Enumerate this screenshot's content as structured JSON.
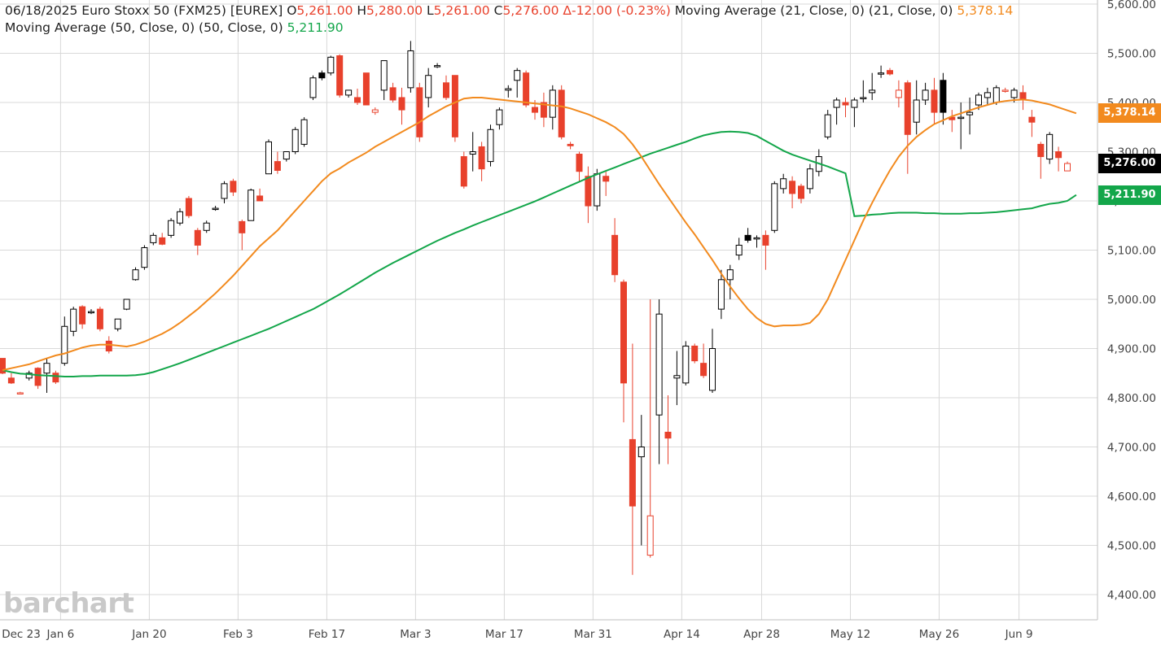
{
  "legend": {
    "line1": {
      "date": "06/18/2025",
      "symbol": "Euro Stoxx 50 (FXM25) [EUREX]",
      "o_label": "O",
      "o": "5,261.00",
      "h_label": "H",
      "h": "5,280.00",
      "l_label": "L",
      "l": "5,261.00",
      "c_label": "C",
      "c": "5,276.00",
      "change": "Δ-12.00 (-0.23%)",
      "ma21_label": "Moving Average (21, Close, 0)  (21, Close, 0)",
      "ma21_value": "5,378.14"
    },
    "line2": {
      "ma50_label": "Moving Average (50, Close, 0)  (50, Close, 0)",
      "ma50_value": "5,211.90"
    }
  },
  "watermark": "barchart",
  "price_tags": {
    "ma21": "5,378.14",
    "last": "5,276.00",
    "ma50": "5,211.90"
  },
  "colors": {
    "up": "#000000",
    "down": "#e8412c",
    "ma21": "#f28a1e",
    "ma50": "#13a64a",
    "grid": "#d9d9d9"
  },
  "chart_data": {
    "type": "candlestick",
    "x_ticks": [
      "Dec 23",
      "Jan 6",
      "Jan 20",
      "Feb 3",
      "Feb 17",
      "Mar 3",
      "Mar 17",
      "Mar 31",
      "Apr 14",
      "Apr 28",
      "May 12",
      "May 26",
      "Jun 9"
    ],
    "y_ticks": [
      "5,600.00",
      "5,500.00",
      "5,400.00",
      "5,300.00",
      "5,200.00",
      "5,100.00",
      "5,000.00",
      "4,900.00",
      "4,800.00",
      "4,700.00",
      "4,600.00",
      "4,500.00",
      "4,400.00"
    ],
    "ylim": [
      4380,
      5610
    ],
    "candles": [
      {
        "o": 4880,
        "h": 4880,
        "l": 4848,
        "c": 4850
      },
      {
        "o": 4840,
        "h": 4850,
        "l": 4828,
        "c": 4830
      },
      {
        "o": 4810,
        "h": 4812,
        "l": 4808,
        "c": 4810
      },
      {
        "o": 4840,
        "h": 4855,
        "l": 4835,
        "c": 4850
      },
      {
        "o": 4860,
        "h": 4862,
        "l": 4818,
        "c": 4825
      },
      {
        "o": 4850,
        "h": 4880,
        "l": 4810,
        "c": 4870
      },
      {
        "o": 4850,
        "h": 4855,
        "l": 4828,
        "c": 4832
      },
      {
        "o": 4870,
        "h": 4965,
        "l": 4865,
        "c": 4945
      },
      {
        "o": 4935,
        "h": 4985,
        "l": 4925,
        "c": 4980
      },
      {
        "o": 4985,
        "h": 4988,
        "l": 4940,
        "c": 4950
      },
      {
        "o": 4975,
        "h": 4980,
        "l": 4970,
        "c": 4975
      },
      {
        "o": 4980,
        "h": 4985,
        "l": 4935,
        "c": 4940
      },
      {
        "o": 4915,
        "h": 4925,
        "l": 4890,
        "c": 4895
      },
      {
        "o": 4940,
        "h": 4960,
        "l": 4935,
        "c": 4960
      },
      {
        "o": 4980,
        "h": 5000,
        "l": 4978,
        "c": 5000
      },
      {
        "o": 5040,
        "h": 5065,
        "l": 5038,
        "c": 5060
      },
      {
        "o": 5065,
        "h": 5110,
        "l": 5060,
        "c": 5105
      },
      {
        "o": 5115,
        "h": 5135,
        "l": 5110,
        "c": 5130
      },
      {
        "o": 5125,
        "h": 5135,
        "l": 5110,
        "c": 5112
      },
      {
        "o": 5130,
        "h": 5165,
        "l": 5125,
        "c": 5160
      },
      {
        "o": 5155,
        "h": 5185,
        "l": 5150,
        "c": 5178
      },
      {
        "o": 5205,
        "h": 5210,
        "l": 5165,
        "c": 5170
      },
      {
        "o": 5140,
        "h": 5145,
        "l": 5090,
        "c": 5110
      },
      {
        "o": 5140,
        "h": 5160,
        "l": 5135,
        "c": 5155
      },
      {
        "o": 5185,
        "h": 5190,
        "l": 5180,
        "c": 5185
      },
      {
        "o": 5205,
        "h": 5240,
        "l": 5195,
        "c": 5235
      },
      {
        "o": 5240,
        "h": 5245,
        "l": 5210,
        "c": 5218
      },
      {
        "o": 5158,
        "h": 5162,
        "l": 5100,
        "c": 5135
      },
      {
        "o": 5160,
        "h": 5225,
        "l": 5160,
        "c": 5222
      },
      {
        "o": 5210,
        "h": 5225,
        "l": 5200,
        "c": 5200
      },
      {
        "o": 5255,
        "h": 5325,
        "l": 5255,
        "c": 5320
      },
      {
        "o": 5280,
        "h": 5300,
        "l": 5255,
        "c": 5262
      },
      {
        "o": 5285,
        "h": 5300,
        "l": 5280,
        "c": 5300
      },
      {
        "o": 5300,
        "h": 5350,
        "l": 5295,
        "c": 5345
      },
      {
        "o": 5315,
        "h": 5370,
        "l": 5310,
        "c": 5365
      },
      {
        "o": 5410,
        "h": 5455,
        "l": 5405,
        "c": 5450
      },
      {
        "o": 5460,
        "h": 5465,
        "l": 5445,
        "c": 5450
      },
      {
        "o": 5460,
        "h": 5495,
        "l": 5455,
        "c": 5492
      },
      {
        "o": 5495,
        "h": 5498,
        "l": 5410,
        "c": 5415
      },
      {
        "o": 5415,
        "h": 5425,
        "l": 5410,
        "c": 5425
      },
      {
        "o": 5410,
        "h": 5428,
        "l": 5395,
        "c": 5400
      },
      {
        "o": 5460,
        "h": 5460,
        "l": 5395,
        "c": 5395
      },
      {
        "o": 5380,
        "h": 5390,
        "l": 5375,
        "c": 5385
      },
      {
        "o": 5425,
        "h": 5485,
        "l": 5405,
        "c": 5485
      },
      {
        "o": 5430,
        "h": 5440,
        "l": 5400,
        "c": 5405
      },
      {
        "o": 5410,
        "h": 5430,
        "l": 5355,
        "c": 5385
      },
      {
        "o": 5430,
        "h": 5525,
        "l": 5420,
        "c": 5505
      },
      {
        "o": 5430,
        "h": 5440,
        "l": 5320,
        "c": 5330
      },
      {
        "o": 5410,
        "h": 5470,
        "l": 5390,
        "c": 5455
      },
      {
        "o": 5475,
        "h": 5480,
        "l": 5470,
        "c": 5475
      },
      {
        "o": 5440,
        "h": 5455,
        "l": 5405,
        "c": 5410
      },
      {
        "o": 5455,
        "h": 5455,
        "l": 5320,
        "c": 5330
      },
      {
        "o": 5290,
        "h": 5300,
        "l": 5225,
        "c": 5230
      },
      {
        "o": 5295,
        "h": 5340,
        "l": 5260,
        "c": 5300
      },
      {
        "o": 5310,
        "h": 5320,
        "l": 5240,
        "c": 5265
      },
      {
        "o": 5280,
        "h": 5355,
        "l": 5270,
        "c": 5345
      },
      {
        "o": 5355,
        "h": 5390,
        "l": 5345,
        "c": 5385
      },
      {
        "o": 5425,
        "h": 5435,
        "l": 5410,
        "c": 5428
      },
      {
        "o": 5445,
        "h": 5470,
        "l": 5410,
        "c": 5465
      },
      {
        "o": 5460,
        "h": 5465,
        "l": 5390,
        "c": 5395
      },
      {
        "o": 5390,
        "h": 5405,
        "l": 5365,
        "c": 5380
      },
      {
        "o": 5400,
        "h": 5420,
        "l": 5350,
        "c": 5370
      },
      {
        "o": 5370,
        "h": 5435,
        "l": 5345,
        "c": 5425
      },
      {
        "o": 5425,
        "h": 5435,
        "l": 5325,
        "c": 5330
      },
      {
        "o": 5315,
        "h": 5320,
        "l": 5305,
        "c": 5312
      },
      {
        "o": 5295,
        "h": 5300,
        "l": 5240,
        "c": 5260
      },
      {
        "o": 5250,
        "h": 5270,
        "l": 5155,
        "c": 5190
      },
      {
        "o": 5190,
        "h": 5265,
        "l": 5180,
        "c": 5255
      },
      {
        "o": 5250,
        "h": 5260,
        "l": 5210,
        "c": 5240
      },
      {
        "o": 5130,
        "h": 5165,
        "l": 5035,
        "c": 5050
      },
      {
        "o": 5035,
        "h": 5040,
        "l": 4750,
        "c": 4830
      },
      {
        "o": 4715,
        "h": 4910,
        "l": 4440,
        "c": 4580
      },
      {
        "o": 4680,
        "h": 4765,
        "l": 4500,
        "c": 4700
      },
      {
        "o": 4480,
        "h": 5000,
        "l": 4475,
        "c": 4560
      },
      {
        "o": 4765,
        "h": 5000,
        "l": 4665,
        "c": 4970
      },
      {
        "o": 4730,
        "h": 4805,
        "l": 4665,
        "c": 4718
      },
      {
        "o": 4840,
        "h": 4895,
        "l": 4785,
        "c": 4845
      },
      {
        "o": 4830,
        "h": 4915,
        "l": 4825,
        "c": 4905
      },
      {
        "o": 4905,
        "h": 4910,
        "l": 4870,
        "c": 4875
      },
      {
        "o": 4870,
        "h": 4910,
        "l": 4840,
        "c": 4845
      },
      {
        "o": 4815,
        "h": 4940,
        "l": 4810,
        "c": 4900
      },
      {
        "o": 4980,
        "h": 5060,
        "l": 4960,
        "c": 5040
      },
      {
        "o": 5040,
        "h": 5070,
        "l": 5000,
        "c": 5060
      },
      {
        "o": 5090,
        "h": 5125,
        "l": 5080,
        "c": 5110
      },
      {
        "o": 5130,
        "h": 5145,
        "l": 5115,
        "c": 5120
      },
      {
        "o": 5125,
        "h": 5130,
        "l": 5105,
        "c": 5125
      },
      {
        "o": 5130,
        "h": 5140,
        "l": 5060,
        "c": 5110
      },
      {
        "o": 5140,
        "h": 5240,
        "l": 5135,
        "c": 5235
      },
      {
        "o": 5225,
        "h": 5255,
        "l": 5215,
        "c": 5245
      },
      {
        "o": 5240,
        "h": 5250,
        "l": 5185,
        "c": 5215
      },
      {
        "o": 5230,
        "h": 5235,
        "l": 5195,
        "c": 5205
      },
      {
        "o": 5225,
        "h": 5275,
        "l": 5215,
        "c": 5265
      },
      {
        "o": 5260,
        "h": 5305,
        "l": 5250,
        "c": 5290
      },
      {
        "o": 5330,
        "h": 5385,
        "l": 5325,
        "c": 5375
      },
      {
        "o": 5390,
        "h": 5410,
        "l": 5355,
        "c": 5405
      },
      {
        "o": 5400,
        "h": 5410,
        "l": 5370,
        "c": 5395
      },
      {
        "o": 5390,
        "h": 5410,
        "l": 5350,
        "c": 5405
      },
      {
        "o": 5410,
        "h": 5445,
        "l": 5400,
        "c": 5410
      },
      {
        "o": 5420,
        "h": 5460,
        "l": 5405,
        "c": 5425
      },
      {
        "o": 5460,
        "h": 5475,
        "l": 5450,
        "c": 5460
      },
      {
        "o": 5465,
        "h": 5470,
        "l": 5455,
        "c": 5458
      },
      {
        "o": 5410,
        "h": 5445,
        "l": 5390,
        "c": 5425
      },
      {
        "o": 5440,
        "h": 5445,
        "l": 5255,
        "c": 5335
      },
      {
        "o": 5360,
        "h": 5445,
        "l": 5335,
        "c": 5405
      },
      {
        "o": 5405,
        "h": 5440,
        "l": 5395,
        "c": 5425
      },
      {
        "o": 5425,
        "h": 5450,
        "l": 5355,
        "c": 5380
      },
      {
        "o": 5445,
        "h": 5460,
        "l": 5355,
        "c": 5380
      },
      {
        "o": 5370,
        "h": 5385,
        "l": 5340,
        "c": 5365
      },
      {
        "o": 5370,
        "h": 5400,
        "l": 5305,
        "c": 5370
      },
      {
        "o": 5375,
        "h": 5410,
        "l": 5335,
        "c": 5380
      },
      {
        "o": 5395,
        "h": 5420,
        "l": 5385,
        "c": 5415
      },
      {
        "o": 5410,
        "h": 5430,
        "l": 5395,
        "c": 5420
      },
      {
        "o": 5400,
        "h": 5435,
        "l": 5395,
        "c": 5430
      },
      {
        "o": 5425,
        "h": 5430,
        "l": 5420,
        "c": 5425
      },
      {
        "o": 5410,
        "h": 5430,
        "l": 5400,
        "c": 5425
      },
      {
        "o": 5420,
        "h": 5435,
        "l": 5385,
        "c": 5405
      },
      {
        "o": 5370,
        "h": 5385,
        "l": 5330,
        "c": 5360
      },
      {
        "o": 5315,
        "h": 5320,
        "l": 5245,
        "c": 5290
      },
      {
        "o": 5285,
        "h": 5340,
        "l": 5275,
        "c": 5335
      },
      {
        "o": 5300,
        "h": 5310,
        "l": 5260,
        "c": 5288
      },
      {
        "o": 5261,
        "h": 5280,
        "l": 5261,
        "c": 5276
      }
    ],
    "ma21": [
      4856,
      4860,
      4864,
      4868,
      4874,
      4880,
      4886,
      4890,
      4896,
      4902,
      4906,
      4908,
      4908,
      4906,
      4904,
      4908,
      4914,
      4922,
      4930,
      4940,
      4952,
      4966,
      4980,
      4996,
      5012,
      5030,
      5048,
      5068,
      5088,
      5108,
      5124,
      5140,
      5160,
      5180,
      5200,
      5220,
      5240,
      5256,
      5266,
      5278,
      5288,
      5298,
      5310,
      5320,
      5330,
      5340,
      5350,
      5360,
      5372,
      5382,
      5392,
      5400,
      5408,
      5410,
      5410,
      5408,
      5406,
      5404,
      5402,
      5400,
      5398,
      5396,
      5394,
      5392,
      5388,
      5382,
      5376,
      5368,
      5360,
      5350,
      5336,
      5315,
      5290,
      5262,
      5234,
      5208,
      5182,
      5156,
      5132,
      5106,
      5080,
      5052,
      5026,
      5002,
      4980,
      4962,
      4950,
      4945,
      4947,
      4947,
      4948,
      4952,
      4970,
      5000,
      5040,
      5080,
      5120,
      5160,
      5196,
      5230,
      5262,
      5290,
      5312,
      5330,
      5344,
      5356,
      5364,
      5372,
      5378,
      5384,
      5390,
      5395,
      5400,
      5403,
      5405,
      5406,
      5404,
      5400,
      5396,
      5390,
      5384,
      5378
    ],
    "ma50": [
      4856,
      4852,
      4849,
      4848,
      4846,
      4845,
      4844,
      4843,
      4843,
      4844,
      4844,
      4845,
      4845,
      4845,
      4845,
      4846,
      4848,
      4852,
      4858,
      4864,
      4870,
      4877,
      4884,
      4891,
      4898,
      4905,
      4912,
      4919,
      4926,
      4933,
      4940,
      4948,
      4956,
      4964,
      4972,
      4980,
      4990,
      5000,
      5010,
      5021,
      5032,
      5043,
      5054,
      5064,
      5074,
      5083,
      5092,
      5101,
      5110,
      5119,
      5127,
      5135,
      5142,
      5150,
      5157,
      5164,
      5171,
      5178,
      5185,
      5192,
      5199,
      5207,
      5215,
      5223,
      5231,
      5239,
      5247,
      5254,
      5261,
      5268,
      5275,
      5282,
      5289,
      5296,
      5302,
      5308,
      5314,
      5320,
      5327,
      5333,
      5337,
      5340,
      5341,
      5340,
      5338,
      5332,
      5322,
      5312,
      5302,
      5294,
      5288,
      5282,
      5276,
      5270,
      5263,
      5256,
      5249,
      5243,
      5237,
      5231,
      5225,
      5219,
      5213,
      5207,
      5200,
      5193,
      5186,
      5180,
      5175,
      5172,
      5170,
      5168,
      5168,
      5168,
      5168,
      5167,
      5167,
      5166,
      5166,
      5166,
      5167,
      5168
    ],
    "ma50_tail": [
      5169,
      5170,
      5172,
      5173,
      5175,
      5176,
      5176,
      5176,
      5175,
      5175,
      5174,
      5174,
      5174,
      5175,
      5175,
      5176,
      5177,
      5179,
      5181,
      5183,
      5185,
      5190,
      5194,
      5196,
      5200,
      5212
    ]
  }
}
